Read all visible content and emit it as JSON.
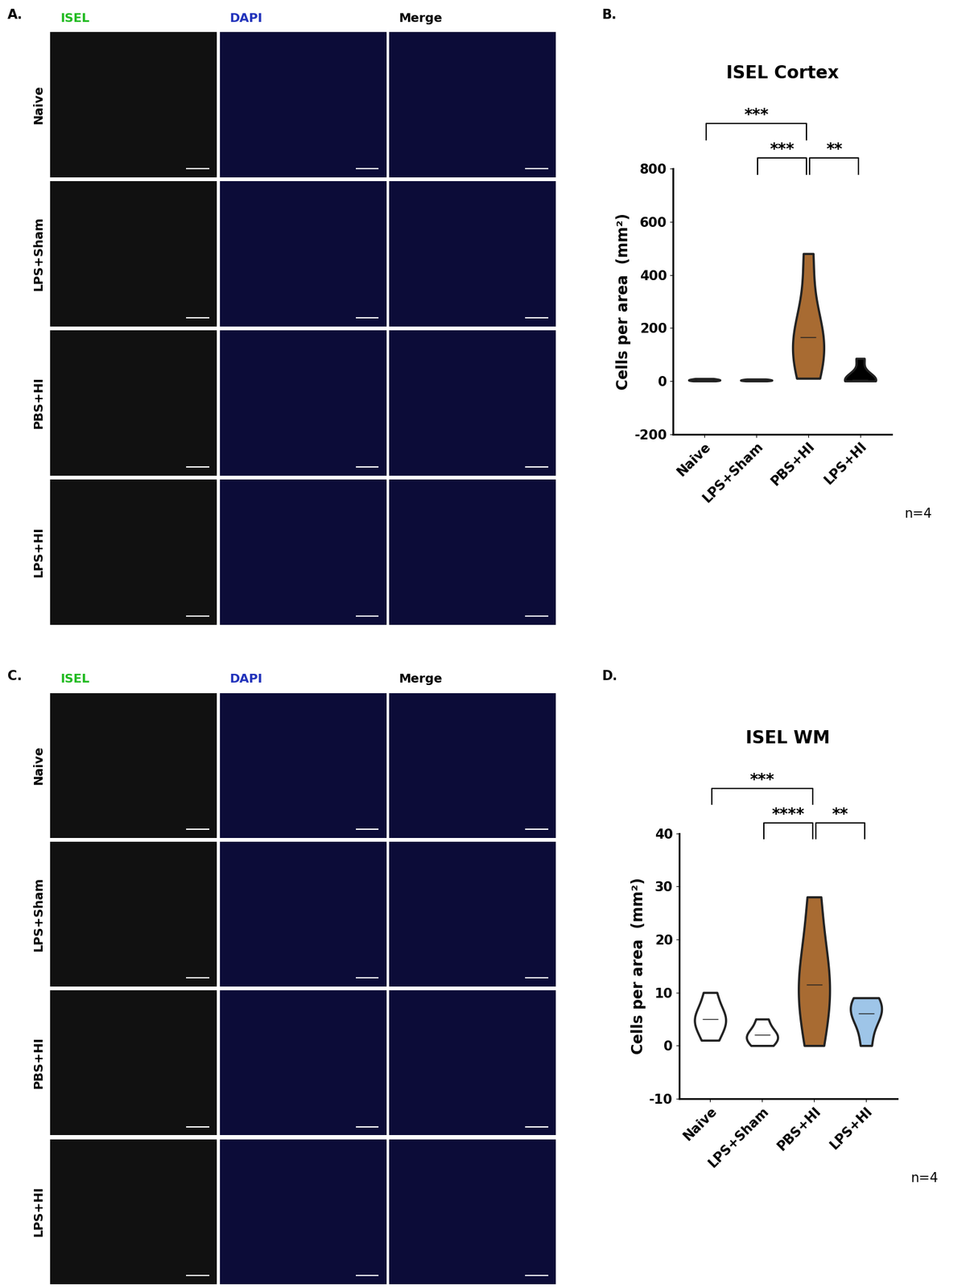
{
  "panel_letters": [
    "A.",
    "B.",
    "C.",
    "D."
  ],
  "image_panels": [
    {
      "columns": [
        "ISEL",
        "DAPI",
        "Merge"
      ],
      "rows": [
        "Naive",
        "LPS+Sham",
        "PBS+HI",
        "LPS+HI"
      ]
    },
    {
      "columns": [
        "ISEL",
        "DAPI",
        "Merge"
      ],
      "rows": [
        "Naive",
        "LPS+Sham",
        "PBS+HI",
        "LPS+HI"
      ]
    }
  ],
  "chart_data": [
    {
      "type": "violin",
      "title": "ISEL Cortex",
      "ylabel": "Cells per area  (mm²)",
      "categories": [
        "Naive",
        "LPS+Sham",
        "PBS+HI",
        "LPS+HI"
      ],
      "values": [
        [
          0,
          2,
          4,
          6,
          9
        ],
        [
          0,
          2,
          3,
          5,
          7
        ],
        [
          10,
          110,
          165,
          175,
          480
        ],
        [
          0,
          2,
          5,
          10,
          85
        ]
      ],
      "colors": [
        "#000000",
        "#000000",
        "#a86b32",
        "#000000"
      ],
      "ylim": [
        -200,
        800
      ],
      "yticks": [
        -200,
        0,
        200,
        400,
        600,
        800
      ],
      "comparisons": [
        {
          "groups": [
            "Naive",
            "PBS+HI"
          ],
          "label": "***"
        },
        {
          "groups": [
            "LPS+Sham",
            "PBS+HI"
          ],
          "label": "***"
        },
        {
          "groups": [
            "PBS+HI",
            "LPS+HI"
          ],
          "label": "**"
        }
      ],
      "annotation": "n=4"
    },
    {
      "type": "violin",
      "title": "ISEL WM",
      "ylabel": "Cells per area  (mm²)",
      "categories": [
        "Naive",
        "LPS+Sham",
        "PBS+HI",
        "LPS+HI"
      ],
      "values": [
        [
          1,
          4,
          5,
          6,
          10
        ],
        [
          0,
          1,
          2,
          2.5,
          5
        ],
        [
          0,
          8,
          11.5,
          16,
          28
        ],
        [
          0,
          5,
          6,
          8,
          9
        ]
      ],
      "colors": [
        "#ffffff",
        "#ffffff",
        "#a86b32",
        "#9ec5e8"
      ],
      "ylim": [
        -10,
        40
      ],
      "yticks": [
        -10,
        0,
        10,
        20,
        30,
        40
      ],
      "comparisons": [
        {
          "groups": [
            "Naive",
            "PBS+HI"
          ],
          "label": "***"
        },
        {
          "groups": [
            "LPS+Sham",
            "PBS+HI"
          ],
          "label": "****"
        },
        {
          "groups": [
            "PBS+HI",
            "LPS+HI"
          ],
          "label": "**"
        }
      ],
      "annotation": "n=4"
    }
  ]
}
